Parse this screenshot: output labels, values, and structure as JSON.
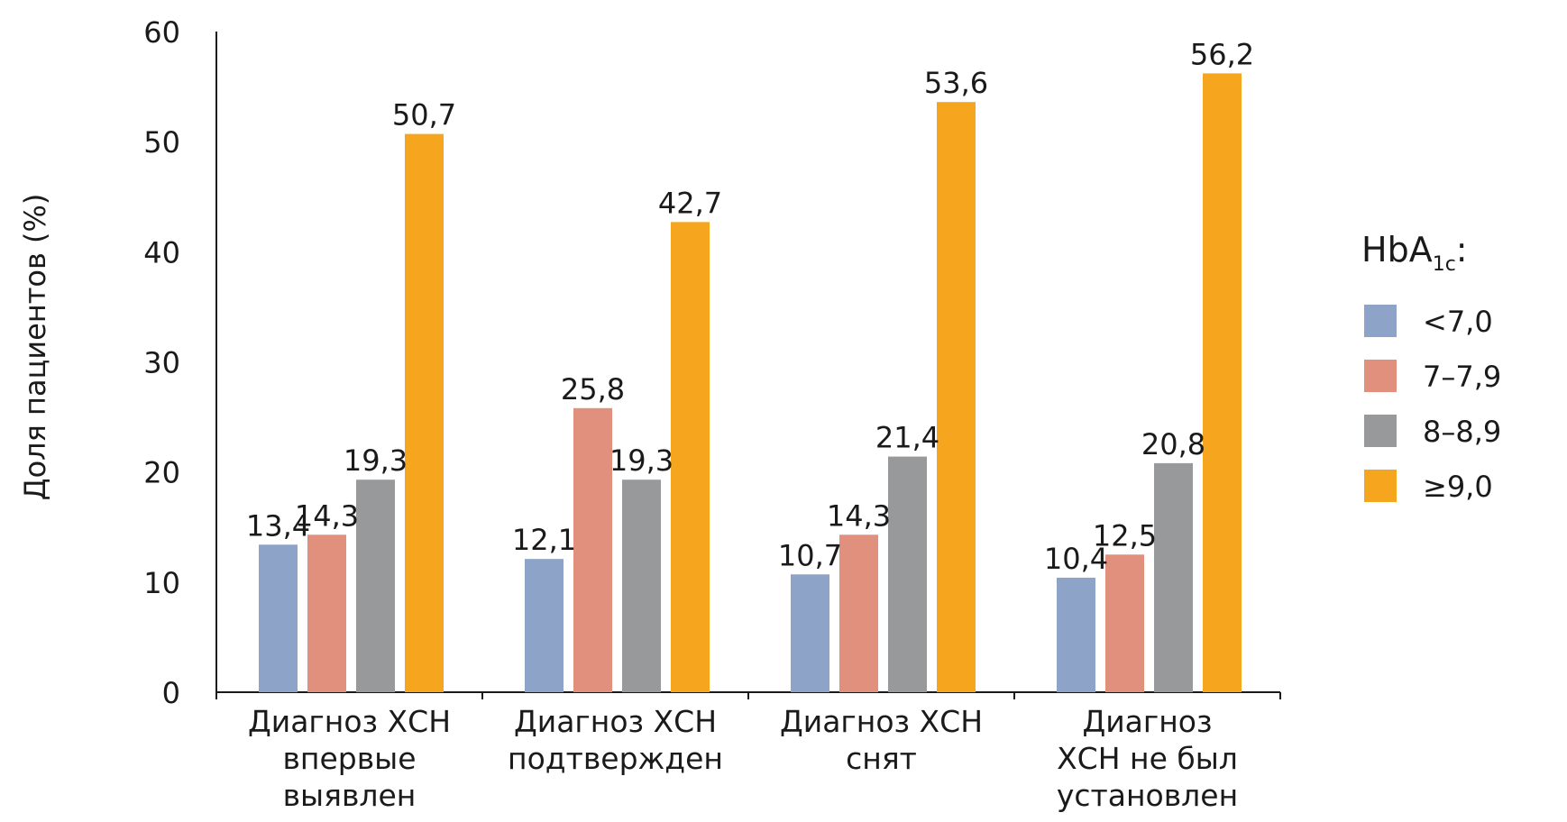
{
  "chart_data": {
    "type": "bar",
    "ylabel": "Доля пациентов (%)",
    "xlabel": "",
    "ylim": [
      0,
      60
    ],
    "yticks": [
      "0",
      "10",
      "20",
      "30",
      "40",
      "50",
      "60"
    ],
    "grid": false,
    "legend_position": "right",
    "legend_title": {
      "main": "HbA",
      "sub": "1c",
      "suffix": ":"
    },
    "categories": [
      [
        "Диагноз ХСН",
        "впервые",
        "выявлен"
      ],
      [
        "Диагноз ХСН",
        "подтвержден"
      ],
      [
        "Диагноз ХСН",
        "снят"
      ],
      [
        "Диагноз",
        "ХСН не был",
        "установлен"
      ]
    ],
    "series": [
      {
        "name": "<7,0",
        "color": "#8ea3c8",
        "values": [
          13.4,
          12.1,
          10.7,
          10.4
        ],
        "labels": [
          "13,4",
          "12,1",
          "10,7",
          "10,4"
        ]
      },
      {
        "name": "7–7,9",
        "color": "#e0907c",
        "values": [
          14.3,
          25.8,
          14.3,
          12.5
        ],
        "labels": [
          "14,3",
          "25,8",
          "14,3",
          "12,5"
        ]
      },
      {
        "name": "8–8,9",
        "color": "#98999b",
        "values": [
          19.3,
          19.3,
          21.4,
          20.8
        ],
        "labels": [
          "19,3",
          "19,3",
          "21,4",
          "20,8"
        ]
      },
      {
        "name": "≥9,0",
        "color": "#f6a51f",
        "values": [
          50.7,
          42.7,
          53.6,
          56.2
        ],
        "labels": [
          "50,7",
          "42,7",
          "53,6",
          "56,2"
        ]
      }
    ]
  }
}
